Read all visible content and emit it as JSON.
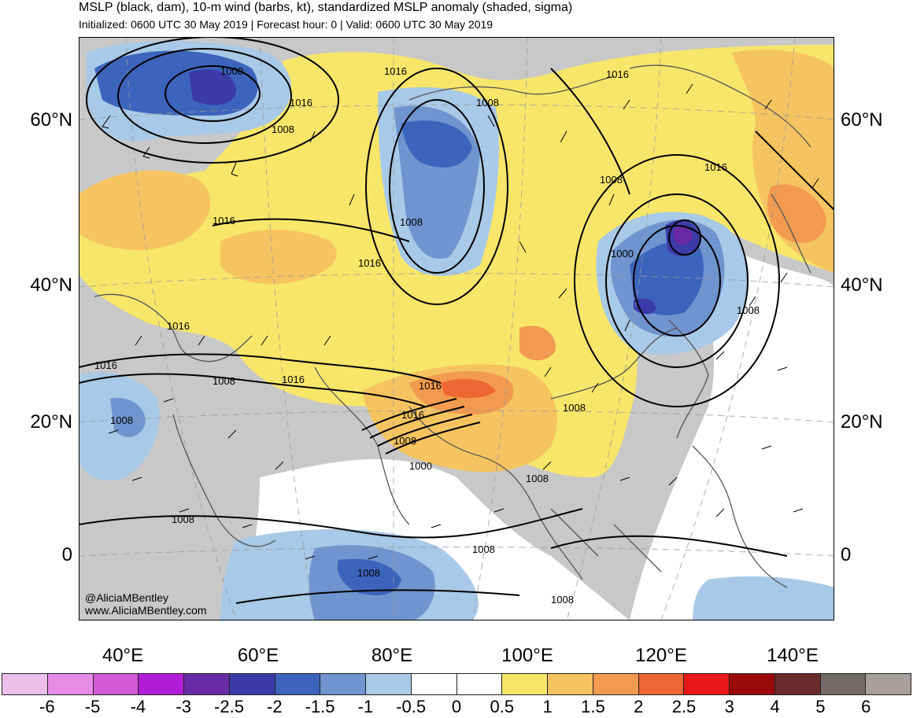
{
  "title": "MSLP (black, dam), 10-m wind (barbs, kt), standardized MSLP anomaly (shaded, sigma)",
  "subtitle": "Initialized: 0600 UTC 30 May 2019 | Forecast hour: 0 | Valid: 0600 UTC 30 May 2019",
  "watermark": {
    "line1": "@AliciaMBentley",
    "line2": "www.AliciaMBentley.com"
  },
  "lat_labels": [
    "60°N",
    "40°N",
    "20°N",
    "0"
  ],
  "lon_labels": [
    "40°E",
    "60°E",
    "80°E",
    "100°E",
    "120°E",
    "140°E"
  ],
  "isobar_labels": [
    "1000",
    "1016",
    "1008",
    "1016",
    "1016",
    "1008",
    "1016",
    "1008",
    "1016",
    "1000",
    "1008",
    "1016",
    "1016",
    "1016",
    "1016",
    "1008",
    "1008",
    "1016",
    "1016",
    "1008",
    "1000",
    "1008",
    "1008",
    "1008",
    "1008",
    "1008",
    "1008",
    "1008"
  ],
  "colorbar": {
    "labels": [
      "-6",
      "-5",
      "-4",
      "-3",
      "-2.5",
      "-2",
      "-1.5",
      "-1",
      "-0.5",
      "0",
      "0.5",
      "1",
      "1.5",
      "2",
      "2.5",
      "3",
      "4",
      "5",
      "6"
    ],
    "colors": [
      "#ebbfea",
      "#e68ce6",
      "#d35ad8",
      "#b21cd6",
      "#6a2aa6",
      "#3a3aa8",
      "#3d64bc",
      "#6f94cf",
      "#a8c9e7",
      "#ffffff",
      "#ffffff",
      "#f8e66a",
      "#f5c460",
      "#f29a4f",
      "#ee6634",
      "#e81818",
      "#9a0a0a",
      "#6b2a2a",
      "#756a6a",
      "#a89e9e"
    ]
  },
  "map_colors": {
    "land_neutral": "#c8c8c8",
    "ocean_neutral": "#ffffff",
    "pos_1": "#f8e66a",
    "pos_2": "#f5c460",
    "pos_3": "#f29a4f",
    "pos_4": "#ee6634",
    "neg_1": "#a8c9e7",
    "neg_2": "#6f94cf",
    "neg_3": "#3d64bc",
    "neg_4": "#3a3aa8",
    "neg_5": "#6a2aa6",
    "coast": "#555555"
  }
}
